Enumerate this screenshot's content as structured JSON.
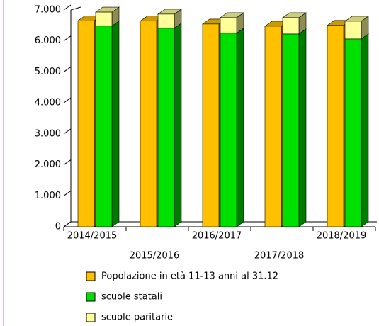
{
  "chart_data": {
    "type": "bar3d",
    "categories": [
      "2014/2015",
      "2015/2016",
      "2016/2017",
      "2017/2018",
      "2018/2019"
    ],
    "series": [
      {
        "name": "Popolazione in età 11-13 anni al 31.12",
        "color": "#ffc000",
        "values": [
          6650,
          6640,
          6545,
          6475,
          6500
        ]
      },
      {
        "name": "scuole statali",
        "color": "#00e000",
        "values": [
          6480,
          6410,
          6250,
          6225,
          6065
        ]
      },
      {
        "name": "scuole paritarie",
        "color": "#ffff99",
        "values": [
          450,
          455,
          500,
          525,
          570
        ],
        "stacked_on_previous": true
      }
    ],
    "ylim": [
      0,
      7000
    ],
    "yticks": [
      {
        "value": 0,
        "label": "0"
      },
      {
        "value": 1000,
        "label": "1.000"
      },
      {
        "value": 2000,
        "label": "2.000"
      },
      {
        "value": 3000,
        "label": "3.000"
      },
      {
        "value": 4000,
        "label": "4.000"
      },
      {
        "value": 5000,
        "label": "5.000"
      },
      {
        "value": 6000,
        "label": "6.000"
      },
      {
        "value": 7000,
        "label": "7.000"
      }
    ]
  }
}
